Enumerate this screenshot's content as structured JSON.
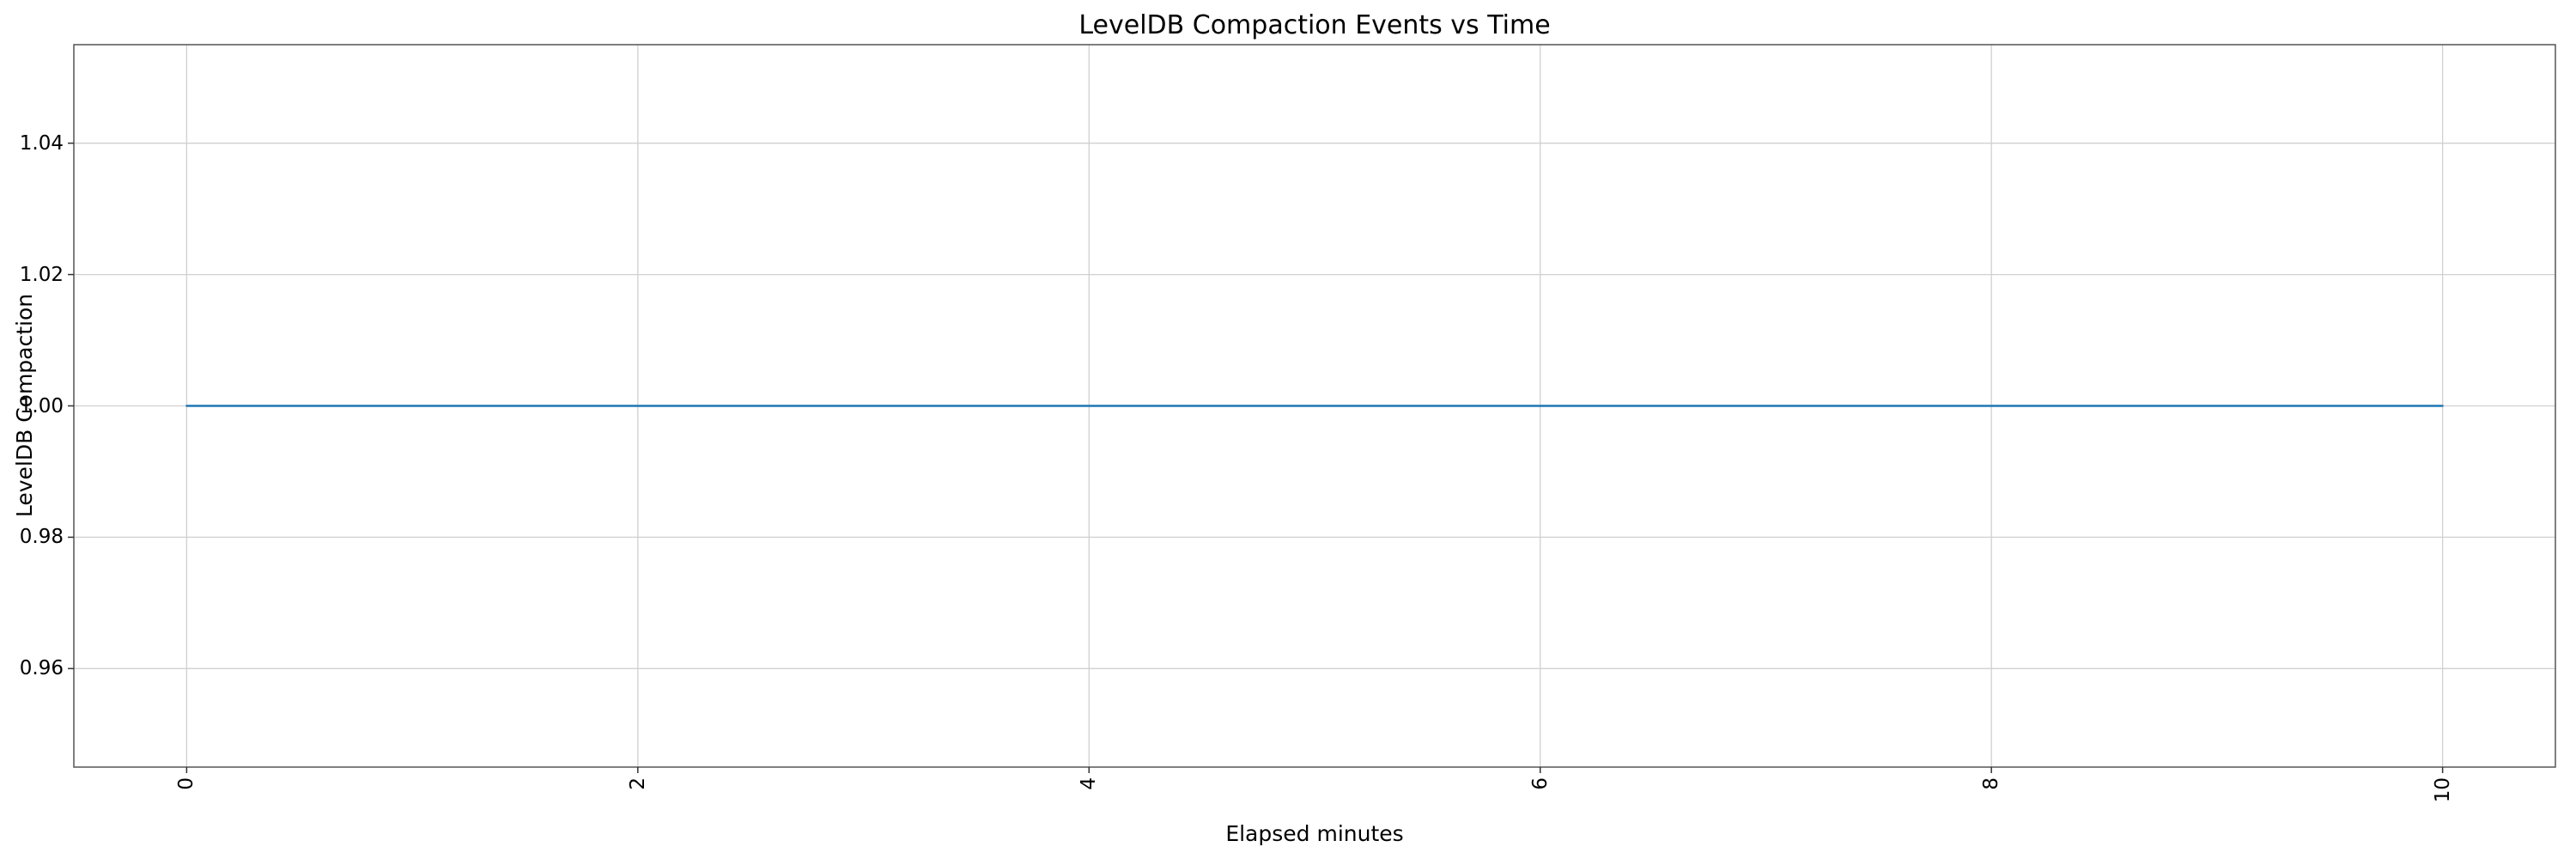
{
  "chart_data": {
    "type": "line",
    "title": "LevelDB Compaction Events vs Time",
    "xlabel": "Elapsed minutes",
    "ylabel": "LevelDB Compaction",
    "grid": true,
    "legend_position": "none",
    "xlim": [
      -0.5,
      10.5
    ],
    "ylim": [
      0.945,
      1.055
    ],
    "xticks": [
      0,
      2,
      4,
      6,
      8,
      10
    ],
    "xtick_labels": [
      "0",
      "2",
      "4",
      "6",
      "8",
      "10"
    ],
    "xtick_rotation_deg": 90,
    "yticks": [
      0.96,
      0.98,
      1.0,
      1.02,
      1.04
    ],
    "ytick_labels": [
      "0.96",
      "0.98",
      "1.00",
      "1.02",
      "1.04"
    ],
    "series": [
      {
        "name": "LevelDB Compaction",
        "color": "#1f77b4",
        "x": [
          0,
          10
        ],
        "y": [
          1.0,
          1.0
        ],
        "note": "constant value 1.0 from 0 to 10 elapsed minutes"
      }
    ],
    "colors": {
      "background": "#ffffff",
      "grid": "#d0d0d0",
      "spine": "#555555",
      "tick": "#333333",
      "text": "#000000"
    }
  }
}
